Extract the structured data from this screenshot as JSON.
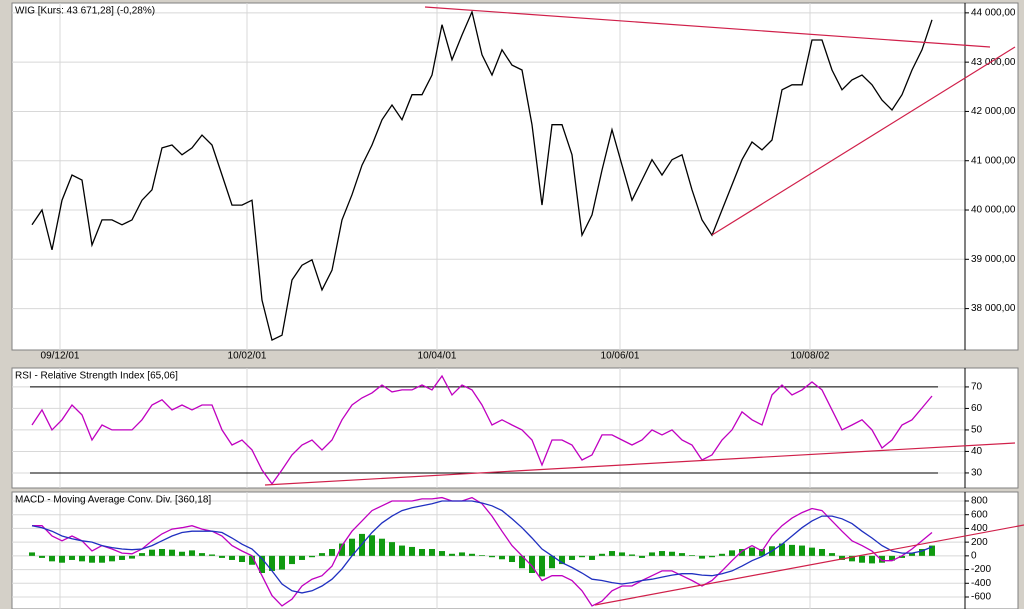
{
  "chart_data": [
    {
      "type": "line",
      "title": "WIG [Kurs: 43 671,28] (-0,28%)",
      "color": "#000000",
      "grid": true,
      "xlim": [
        -2,
        93.3
      ],
      "xticks": [
        {
          "value": 2.8,
          "label": "09/12/01"
        },
        {
          "value": 21.5,
          "label": "10/02/01"
        },
        {
          "value": 40.5,
          "label": "10/04/01"
        },
        {
          "value": 58.8,
          "label": "10/06/01"
        },
        {
          "value": 77.8,
          "label": "10/08/02"
        }
      ],
      "ylim": [
        37160,
        44200
      ],
      "yticks": [
        {
          "value": 38000,
          "label": "38 000,00"
        },
        {
          "value": 39000,
          "label": "39 000,00"
        },
        {
          "value": 40000,
          "label": "40 000,00"
        },
        {
          "value": 41000,
          "label": "41 000,00"
        },
        {
          "value": 42000,
          "label": "42 000,00"
        },
        {
          "value": 43000,
          "label": "43 000,00"
        },
        {
          "value": 44000,
          "label": "44 000,00"
        }
      ],
      "values": [
        39700,
        40000,
        39190,
        40200,
        40710,
        40610,
        39290,
        39800,
        39800,
        39700,
        39800,
        40200,
        40410,
        41260,
        41320,
        41120,
        41260,
        41520,
        41320,
        40710,
        40100,
        40100,
        40200,
        38170,
        37360,
        37460,
        38580,
        38880,
        38990,
        38380,
        38780,
        39800,
        40310,
        40910,
        41320,
        41830,
        42130,
        41830,
        42340,
        42340,
        42740,
        43760,
        43050,
        43550,
        44020,
        43150,
        42740,
        43250,
        42940,
        42840,
        41730,
        40100,
        41730,
        41730,
        41120,
        39490,
        39900,
        40810,
        41630,
        40910,
        40200,
        40610,
        41020,
        40710,
        41020,
        41120,
        40410,
        39800,
        39490,
        40000,
        40510,
        41020,
        41380,
        41220,
        41420,
        42440,
        42540,
        42540,
        43450,
        43450,
        42840,
        42440,
        42640,
        42740,
        42540,
        42230,
        42030,
        42340,
        42840,
        43250,
        43860
      ]
    },
    {
      "type": "line",
      "title": "RSI - Relative Strength Index [65,06]",
      "color": "#c000c0",
      "grid": true,
      "xlim": [
        -2,
        93.3
      ],
      "ylim": [
        23,
        78.8
      ],
      "yticks": [
        30,
        40,
        50,
        60,
        70
      ],
      "hlines": [
        70,
        30
      ],
      "values": [
        52.3,
        59.3,
        50,
        54.7,
        61.6,
        57,
        45.3,
        52.3,
        50,
        50,
        50,
        54.7,
        61.6,
        64,
        59.3,
        61.6,
        59.3,
        61.6,
        61.6,
        50,
        43,
        45.3,
        40.7,
        31.4,
        24.9,
        31.4,
        38.4,
        43,
        45.3,
        40.7,
        45.3,
        54.7,
        61.6,
        64.9,
        67.2,
        70.9,
        67.7,
        68.6,
        68.6,
        70.9,
        68.6,
        75.1,
        66.3,
        70.9,
        68.6,
        61.6,
        52.3,
        54.7,
        52.3,
        50,
        45.3,
        33.7,
        45.3,
        45.3,
        43,
        36,
        38.4,
        47.7,
        47.7,
        45.3,
        43,
        45.3,
        50,
        47.7,
        50,
        45.3,
        43,
        36,
        38.4,
        45.3,
        50,
        58.4,
        54.7,
        52.3,
        66.3,
        70.9,
        66.3,
        68.6,
        72.3,
        68.6,
        59.3,
        50,
        52.3,
        54.7,
        50,
        41.6,
        45.3,
        52.3,
        54.7,
        60.2,
        65.8
      ]
    },
    {
      "type": "combo",
      "title": "MACD - Moving Average Conv. Div. [360,18]",
      "grid": true,
      "xlim": [
        -2,
        93.3
      ],
      "ylim": [
        -775,
        931
      ],
      "yticks": [
        800,
        600,
        400,
        200,
        0,
        -200,
        -400,
        -600
      ],
      "series": [
        {
          "type": "bar",
          "color": "#109a10",
          "values": [
            50,
            -30,
            -80,
            -100,
            -60,
            -80,
            -100,
            -100,
            -80,
            -60,
            -40,
            40,
            90,
            100,
            90,
            60,
            80,
            40,
            20,
            -30,
            -60,
            -90,
            -130,
            -250,
            -220,
            -200,
            -120,
            -60,
            -20,
            40,
            100,
            180,
            250,
            320,
            300,
            250,
            200,
            150,
            130,
            100,
            100,
            70,
            30,
            50,
            30,
            10,
            -20,
            -50,
            -90,
            -180,
            -250,
            -300,
            -180,
            -120,
            -60,
            -20,
            -60,
            30,
            70,
            50,
            20,
            -30,
            50,
            70,
            60,
            40,
            10,
            -40,
            -20,
            30,
            80,
            100,
            120,
            100,
            140,
            180,
            160,
            150,
            120,
            100,
            40,
            -60,
            -80,
            -100,
            -110,
            -100,
            -70,
            -30,
            40,
            100,
            150
          ]
        },
        {
          "type": "line",
          "color": "#c000c0",
          "values": [
            440,
            440,
            290,
            220,
            290,
            220,
            70,
            150,
            100,
            40,
            30,
            100,
            220,
            320,
            390,
            410,
            440,
            390,
            360,
            290,
            150,
            70,
            0,
            -290,
            -580,
            -730,
            -630,
            -440,
            -340,
            -290,
            -150,
            150,
            360,
            510,
            660,
            730,
            800,
            800,
            800,
            830,
            830,
            850,
            800,
            800,
            850,
            760,
            580,
            360,
            150,
            0,
            -150,
            -360,
            -290,
            -290,
            -360,
            -510,
            -730,
            -660,
            -510,
            -440,
            -440,
            -360,
            -290,
            -220,
            -220,
            -290,
            -360,
            -440,
            -360,
            -220,
            -70,
            70,
            150,
            70,
            290,
            440,
            550,
            630,
            690,
            660,
            510,
            360,
            220,
            150,
            70,
            -70,
            -70,
            0,
            100,
            220,
            340
          ]
        },
        {
          "type": "line",
          "color": "#2030c0",
          "values": [
            440,
            410,
            360,
            290,
            250,
            220,
            200,
            150,
            120,
            100,
            90,
            100,
            150,
            220,
            290,
            340,
            360,
            360,
            360,
            340,
            260,
            170,
            100,
            -40,
            -220,
            -410,
            -510,
            -540,
            -510,
            -440,
            -340,
            -190,
            0,
            170,
            340,
            480,
            580,
            660,
            700,
            730,
            760,
            800,
            800,
            800,
            800,
            770,
            730,
            660,
            540,
            410,
            260,
            100,
            0,
            -100,
            -170,
            -250,
            -340,
            -360,
            -390,
            -410,
            -390,
            -360,
            -340,
            -310,
            -280,
            -260,
            -260,
            -280,
            -290,
            -260,
            -220,
            -150,
            -70,
            -10,
            70,
            170,
            290,
            410,
            510,
            580,
            580,
            540,
            470,
            360,
            260,
            150,
            70,
            40,
            40,
            70,
            130
          ]
        }
      ]
    }
  ]
}
